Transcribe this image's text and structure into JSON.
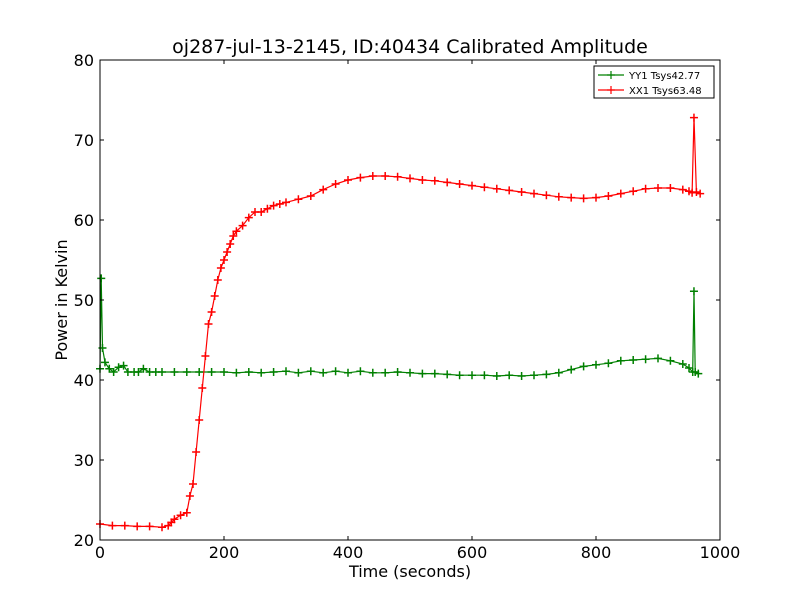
{
  "chart_data": {
    "type": "line",
    "title": "oj287-jul-13-2145, ID:40434 Calibrated Amplitude",
    "xlabel": "Time (seconds)",
    "ylabel": "Power in Kelvin",
    "xlim": [
      0,
      1000
    ],
    "ylim": [
      20,
      80
    ],
    "x_ticks": [
      0,
      200,
      400,
      600,
      800,
      1000
    ],
    "y_ticks": [
      20,
      30,
      40,
      50,
      60,
      70,
      80
    ],
    "x_tick_labels": [
      "0",
      "200",
      "400",
      "600",
      "800",
      "1000"
    ],
    "y_tick_labels": [
      "20",
      "30",
      "40",
      "50",
      "60",
      "70",
      "80"
    ],
    "grid": false,
    "legend_position": "top-right",
    "marker": "+",
    "series": [
      {
        "name": "YY1 Tsys42.77",
        "color": "#008000",
        "points": [
          [
            0,
            41.4
          ],
          [
            2,
            52.7
          ],
          [
            4,
            44.0
          ],
          [
            8,
            42.2
          ],
          [
            15,
            41.4
          ],
          [
            22,
            41.0
          ],
          [
            30,
            41.6
          ],
          [
            38,
            41.8
          ],
          [
            45,
            41.0
          ],
          [
            55,
            41.0
          ],
          [
            62,
            41.0
          ],
          [
            70,
            41.4
          ],
          [
            80,
            41.0
          ],
          [
            90,
            41.0
          ],
          [
            100,
            41.0
          ],
          [
            120,
            41.0
          ],
          [
            140,
            41.0
          ],
          [
            160,
            41.0
          ],
          [
            180,
            41.0
          ],
          [
            200,
            41.0
          ],
          [
            220,
            40.9
          ],
          [
            240,
            41.0
          ],
          [
            260,
            40.9
          ],
          [
            280,
            41.0
          ],
          [
            300,
            41.1
          ],
          [
            320,
            40.9
          ],
          [
            340,
            41.1
          ],
          [
            360,
            40.9
          ],
          [
            380,
            41.1
          ],
          [
            400,
            40.9
          ],
          [
            420,
            41.1
          ],
          [
            440,
            40.9
          ],
          [
            460,
            40.9
          ],
          [
            480,
            41.0
          ],
          [
            500,
            40.9
          ],
          [
            520,
            40.8
          ],
          [
            540,
            40.8
          ],
          [
            560,
            40.7
          ],
          [
            580,
            40.6
          ],
          [
            600,
            40.6
          ],
          [
            620,
            40.6
          ],
          [
            640,
            40.5
          ],
          [
            660,
            40.6
          ],
          [
            680,
            40.5
          ],
          [
            700,
            40.6
          ],
          [
            720,
            40.7
          ],
          [
            740,
            40.9
          ],
          [
            760,
            41.3
          ],
          [
            780,
            41.7
          ],
          [
            800,
            41.9
          ],
          [
            820,
            42.1
          ],
          [
            840,
            42.4
          ],
          [
            860,
            42.5
          ],
          [
            880,
            42.6
          ],
          [
            900,
            42.7
          ],
          [
            920,
            42.4
          ],
          [
            940,
            42.0
          ],
          [
            950,
            41.5
          ],
          [
            956,
            41.0
          ],
          [
            958,
            51.1
          ],
          [
            960,
            41.0
          ],
          [
            965,
            40.8
          ]
        ]
      },
      {
        "name": "XX1 Tsys63.48",
        "color": "#ff0000",
        "points": [
          [
            0,
            22.0
          ],
          [
            20,
            21.8
          ],
          [
            40,
            21.8
          ],
          [
            60,
            21.7
          ],
          [
            80,
            21.7
          ],
          [
            100,
            21.6
          ],
          [
            110,
            21.8
          ],
          [
            115,
            22.2
          ],
          [
            120,
            22.6
          ],
          [
            130,
            23.1
          ],
          [
            140,
            23.4
          ],
          [
            145,
            25.5
          ],
          [
            150,
            27.0
          ],
          [
            155,
            31.0
          ],
          [
            160,
            35.0
          ],
          [
            165,
            39.0
          ],
          [
            170,
            43.0
          ],
          [
            175,
            47.0
          ],
          [
            180,
            48.5
          ],
          [
            185,
            50.5
          ],
          [
            190,
            52.5
          ],
          [
            195,
            54.0
          ],
          [
            200,
            55.0
          ],
          [
            205,
            56.0
          ],
          [
            210,
            57.0
          ],
          [
            215,
            58.0
          ],
          [
            220,
            58.6
          ],
          [
            230,
            59.3
          ],
          [
            240,
            60.3
          ],
          [
            250,
            61.0
          ],
          [
            260,
            61.0
          ],
          [
            270,
            61.4
          ],
          [
            280,
            61.8
          ],
          [
            290,
            62.0
          ],
          [
            300,
            62.2
          ],
          [
            320,
            62.6
          ],
          [
            340,
            63.0
          ],
          [
            360,
            63.8
          ],
          [
            380,
            64.5
          ],
          [
            400,
            65.0
          ],
          [
            420,
            65.3
          ],
          [
            440,
            65.5
          ],
          [
            460,
            65.5
          ],
          [
            480,
            65.4
          ],
          [
            500,
            65.2
          ],
          [
            520,
            65.0
          ],
          [
            540,
            64.9
          ],
          [
            560,
            64.7
          ],
          [
            580,
            64.5
          ],
          [
            600,
            64.3
          ],
          [
            620,
            64.1
          ],
          [
            640,
            63.9
          ],
          [
            660,
            63.7
          ],
          [
            680,
            63.5
          ],
          [
            700,
            63.3
          ],
          [
            720,
            63.1
          ],
          [
            740,
            62.9
          ],
          [
            760,
            62.8
          ],
          [
            780,
            62.7
          ],
          [
            800,
            62.8
          ],
          [
            820,
            63.0
          ],
          [
            840,
            63.3
          ],
          [
            860,
            63.6
          ],
          [
            880,
            63.9
          ],
          [
            900,
            64.0
          ],
          [
            920,
            64.0
          ],
          [
            940,
            63.8
          ],
          [
            950,
            63.6
          ],
          [
            955,
            63.4
          ],
          [
            958,
            72.8
          ],
          [
            962,
            63.5
          ],
          [
            968,
            63.3
          ]
        ]
      }
    ]
  }
}
